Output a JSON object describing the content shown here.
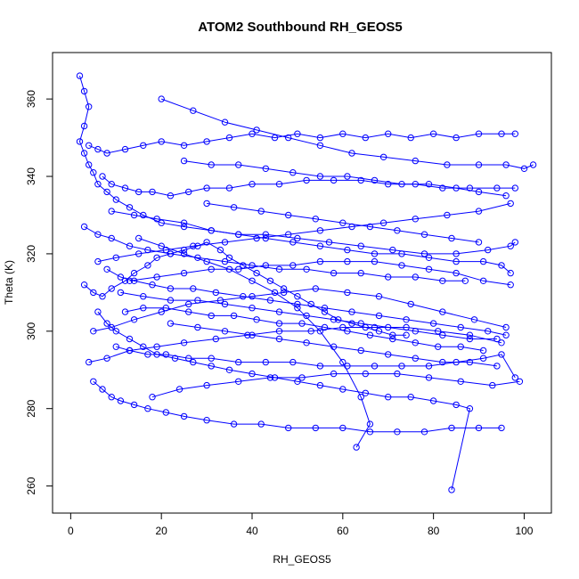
{
  "chart_data": {
    "type": "line",
    "title": "ATOM2 Southbound RH_GEOS5",
    "xlabel": "RH_GEOS5",
    "ylabel": "Theta (K)",
    "xlim": [
      -4,
      106
    ],
    "ylim": [
      253,
      372
    ],
    "x_ticks": [
      0,
      20,
      40,
      60,
      80,
      100
    ],
    "y_ticks": [
      260,
      280,
      300,
      320,
      340,
      360
    ],
    "grid": false,
    "legend": "none",
    "series_color": "#0000ff",
    "markers": "open-circle",
    "series": [
      {
        "x": [
          2,
          3,
          4,
          3,
          2,
          3,
          4,
          5,
          6,
          8,
          10,
          13,
          16,
          20,
          25,
          31,
          37,
          43,
          50,
          57,
          64,
          71,
          78,
          85,
          92,
          97,
          98
        ],
        "y": [
          366,
          362,
          358,
          353,
          349,
          346,
          343,
          341,
          338,
          336,
          334,
          332,
          330,
          328,
          327,
          326,
          325,
          325,
          324,
          323,
          322,
          321,
          320,
          320,
          321,
          322,
          323
        ]
      },
      {
        "x": [
          3,
          5,
          7,
          9,
          12,
          14,
          17,
          19,
          22,
          25,
          28,
          30,
          33,
          35,
          38,
          41,
          44,
          47,
          50,
          53,
          56,
          59,
          62,
          65,
          68,
          71,
          74
        ],
        "y": [
          312,
          310,
          309,
          311,
          313,
          315,
          317,
          319,
          320,
          321,
          322,
          323,
          321,
          319,
          317,
          315,
          313,
          311,
          309,
          307,
          305,
          303,
          302,
          301,
          300,
          299,
          299
        ]
      },
      {
        "x": [
          4,
          6,
          8,
          12,
          16,
          20,
          25,
          30,
          35,
          40,
          45,
          50,
          55,
          60,
          65,
          70,
          75,
          80,
          85,
          90,
          95,
          98
        ],
        "y": [
          348,
          347,
          346,
          347,
          348,
          349,
          348,
          349,
          350,
          351,
          350,
          351,
          350,
          351,
          350,
          351,
          350,
          351,
          350,
          351,
          351,
          351
        ]
      },
      {
        "x": [
          6,
          8,
          10,
          13,
          16,
          19,
          23,
          27,
          31,
          35,
          40,
          45,
          50,
          55,
          60,
          65,
          70,
          75,
          80,
          85,
          88,
          84
        ],
        "y": [
          305,
          302,
          300,
          298,
          296,
          294,
          293,
          292,
          291,
          290,
          289,
          288,
          287,
          286,
          285,
          284,
          283,
          283,
          282,
          281,
          280,
          259
        ]
      },
      {
        "x": [
          5,
          7,
          9,
          11,
          14,
          17,
          21,
          25,
          30,
          36,
          42,
          48,
          54,
          60,
          66,
          72,
          78,
          84,
          90,
          95
        ],
        "y": [
          287,
          285,
          283,
          282,
          281,
          280,
          279,
          278,
          277,
          276,
          276,
          275,
          275,
          275,
          274,
          274,
          274,
          275,
          275,
          275
        ]
      },
      {
        "x": [
          7,
          9,
          12,
          15,
          18,
          22,
          26,
          30,
          35,
          40,
          46,
          52,
          58,
          64,
          70,
          76,
          82,
          88,
          94,
          98
        ],
        "y": [
          340,
          338,
          337,
          336,
          336,
          335,
          336,
          337,
          337,
          338,
          338,
          339,
          339,
          339,
          338,
          338,
          337,
          337,
          337,
          337
        ]
      },
      {
        "x": [
          8,
          11,
          14,
          18,
          22,
          27,
          32,
          38,
          44,
          50,
          56,
          62,
          68,
          74,
          80,
          86,
          92,
          96
        ],
        "y": [
          316,
          314,
          313,
          312,
          311,
          311,
          310,
          309,
          308,
          307,
          306,
          305,
          304,
          303,
          302,
          301,
          300,
          299
        ]
      },
      {
        "x": [
          10,
          13,
          17,
          21,
          26,
          31,
          37,
          43,
          49,
          55,
          61,
          67,
          73,
          79,
          85,
          91,
          95,
          98
        ],
        "y": [
          296,
          295,
          294,
          294,
          293,
          293,
          292,
          292,
          292,
          291,
          291,
          291,
          291,
          291,
          292,
          293,
          294,
          288
        ]
      },
      {
        "x": [
          3,
          6,
          9,
          13,
          17,
          22,
          28,
          34,
          40,
          46,
          52,
          58,
          64,
          70,
          76,
          82,
          87
        ],
        "y": [
          327,
          325,
          324,
          322,
          321,
          320,
          319,
          318,
          317,
          316,
          316,
          315,
          315,
          314,
          314,
          313,
          313
        ]
      },
      {
        "x": [
          12,
          16,
          21,
          26,
          31,
          36,
          41,
          46,
          51,
          56,
          61,
          66,
          71,
          76,
          81,
          86,
          91
        ],
        "y": [
          305,
          306,
          306,
          305,
          304,
          304,
          303,
          302,
          302,
          301,
          300,
          299,
          298,
          297,
          296,
          296,
          295
        ]
      },
      {
        "x": [
          15,
          20,
          25,
          30,
          35,
          40,
          45,
          50,
          55,
          60,
          64,
          66,
          63
        ],
        "y": [
          324,
          322,
          320,
          318,
          316,
          313,
          310,
          306,
          300,
          292,
          283,
          276,
          270
        ]
      },
      {
        "x": [
          20,
          27,
          34,
          41,
          48,
          55,
          62,
          69,
          76,
          83,
          90,
          96,
          100,
          102
        ],
        "y": [
          360,
          357,
          354,
          352,
          350,
          348,
          346,
          345,
          344,
          343,
          343,
          343,
          342,
          343
        ]
      },
      {
        "x": [
          9,
          14,
          19,
          25,
          31,
          37,
          43,
          49,
          55,
          61,
          67,
          73,
          79,
          85,
          91,
          95,
          97
        ],
        "y": [
          331,
          330,
          329,
          328,
          326,
          325,
          324,
          323,
          322,
          321,
          320,
          320,
          319,
          318,
          318,
          317,
          315
        ]
      },
      {
        "x": [
          5,
          9,
          14,
          20,
          26,
          33,
          40,
          47,
          54,
          61,
          68,
          75,
          82,
          89,
          96
        ],
        "y": [
          300,
          301,
          303,
          305,
          307,
          308,
          309,
          310,
          311,
          310,
          309,
          307,
          305,
          303,
          301
        ]
      },
      {
        "x": [
          18,
          24,
          30,
          37,
          44,
          51,
          58,
          65,
          72,
          79,
          86,
          93,
          99
        ],
        "y": [
          283,
          285,
          286,
          287,
          288,
          288,
          289,
          289,
          289,
          288,
          287,
          286,
          287
        ]
      },
      {
        "x": [
          6,
          10,
          15,
          21,
          27,
          34,
          41,
          48,
          55,
          62,
          69,
          76,
          83,
          90,
          97
        ],
        "y": [
          318,
          319,
          320,
          321,
          322,
          323,
          324,
          325,
          326,
          327,
          328,
          329,
          330,
          331,
          333
        ]
      },
      {
        "x": [
          25,
          31,
          37,
          43,
          49,
          55,
          61,
          67,
          73,
          79,
          85,
          90,
          96
        ],
        "y": [
          344,
          343,
          343,
          342,
          341,
          340,
          340,
          339,
          338,
          338,
          337,
          336,
          335
        ]
      },
      {
        "x": [
          11,
          16,
          22,
          28,
          34,
          40,
          46,
          52,
          58,
          64,
          70,
          76,
          82,
          88,
          94
        ],
        "y": [
          310,
          309,
          308,
          308,
          307,
          306,
          305,
          304,
          303,
          302,
          301,
          300,
          299,
          298,
          298
        ]
      },
      {
        "x": [
          4,
          8,
          13,
          19,
          25,
          32,
          39,
          46,
          53,
          60,
          67,
          74,
          81,
          88,
          95
        ],
        "y": [
          292,
          293,
          295,
          296,
          297,
          298,
          299,
          300,
          300,
          301,
          301,
          301,
          300,
          299,
          297
        ]
      },
      {
        "x": [
          30,
          36,
          42,
          48,
          54,
          60,
          66,
          72,
          78,
          84,
          90
        ],
        "y": [
          333,
          332,
          331,
          330,
          329,
          328,
          327,
          326,
          325,
          324,
          323
        ]
      },
      {
        "x": [
          13,
          19,
          25,
          31,
          37,
          43,
          49,
          55,
          61,
          67,
          73,
          79,
          85,
          91,
          97
        ],
        "y": [
          313,
          314,
          315,
          316,
          316,
          317,
          317,
          318,
          318,
          318,
          317,
          316,
          315,
          313,
          312
        ]
      },
      {
        "x": [
          22,
          28,
          34,
          40,
          46,
          52,
          58,
          64,
          70,
          76,
          82,
          88,
          94
        ],
        "y": [
          302,
          301,
          300,
          299,
          298,
          297,
          296,
          295,
          294,
          293,
          292,
          292,
          291
        ]
      }
    ]
  }
}
